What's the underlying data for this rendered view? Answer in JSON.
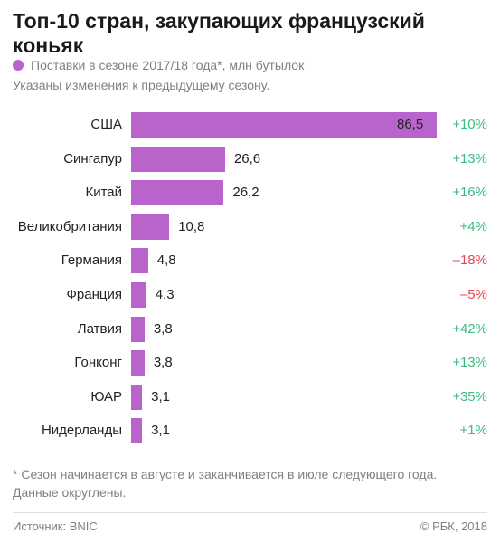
{
  "chart_data": {
    "type": "bar",
    "orientation": "horizontal",
    "title": "Топ-10 стран, закупающих французский коньяк",
    "legend": {
      "label": "Поставки в сезоне 2017/18 года*, млн бутылок",
      "color": "#b964cc"
    },
    "subtitle": "Указаны изменения к предыдущему сезону.",
    "categories": [
      "США",
      "Сингапур",
      "Китай",
      "Великобритания",
      "Германия",
      "Франция",
      "Латвия",
      "Гонконг",
      "ЮАР",
      "Нидерланды"
    ],
    "series": [
      {
        "values": [
          86.5,
          26.6,
          26.2,
          10.8,
          4.8,
          4.3,
          3.8,
          3.8,
          3.1,
          3.1
        ],
        "value_labels": [
          "86,5",
          "26,6",
          "26,2",
          "10,8",
          "4,8",
          "4,3",
          "3,8",
          "3,8",
          "3,1",
          "3,1"
        ]
      }
    ],
    "changes": [
      "+10%",
      "+13%",
      "+16%",
      "+4%",
      "–18%",
      "–5%",
      "+42%",
      "+13%",
      "+35%",
      "+1%"
    ],
    "change_signs": [
      "pos",
      "pos",
      "pos",
      "pos",
      "neg",
      "neg",
      "pos",
      "pos",
      "pos",
      "pos"
    ],
    "xlim": [
      0,
      86.5
    ],
    "grid": false
  },
  "colors": {
    "bar": "#b964cc",
    "positive": "#3dba83",
    "negative": "#e5484d"
  },
  "footnote": {
    "line1": "* Сезон начинается в августе и заканчивается в июле следующего года.",
    "line2": "Данные округлены."
  },
  "source": "Источник: BNIC",
  "copyright": "© РБК, 2018"
}
